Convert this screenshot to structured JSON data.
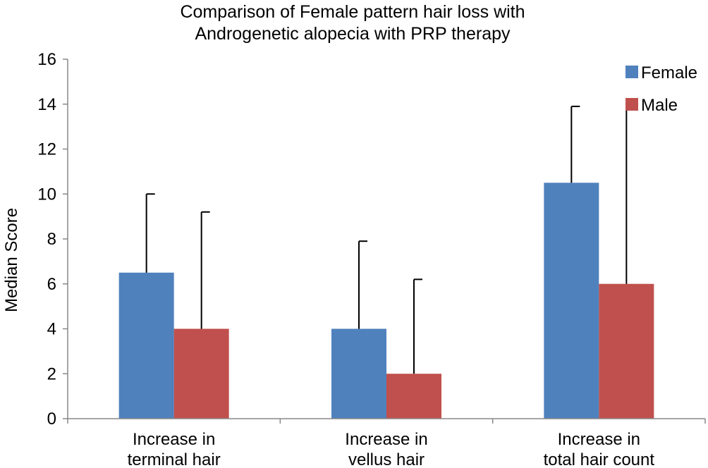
{
  "chart_data": {
    "type": "bar",
    "title_lines": [
      "Comparison of Female pattern hair loss with",
      "Androgenetic alopecia with PRP therapy"
    ],
    "ylabel": "Median Score",
    "xlabel": "",
    "ylim": [
      0,
      16
    ],
    "yticks": [
      0,
      2,
      4,
      6,
      8,
      10,
      12,
      14,
      16
    ],
    "categories": [
      [
        "Increase in",
        "terminal hair"
      ],
      [
        "Increase in",
        "vellus hair"
      ],
      [
        "Increase in",
        "total hair count"
      ]
    ],
    "series": [
      {
        "name": "Female",
        "color": "#4F81BD",
        "values": [
          6.5,
          4,
          10.5
        ],
        "error_upper": [
          10,
          7.9,
          13.9
        ]
      },
      {
        "name": "Male",
        "color": "#C0504D",
        "values": [
          4,
          2,
          6
        ],
        "error_upper": [
          9.2,
          6.2,
          14.1
        ]
      }
    ],
    "legend_position": "top-right",
    "grid": false
  }
}
